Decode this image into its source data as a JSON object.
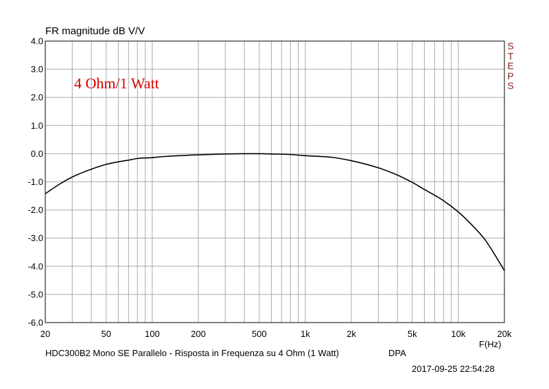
{
  "colors": {
    "grid": "#a9a9a9",
    "curve": "#000000",
    "annotation": "#d40000",
    "steps": "#8b2020"
  },
  "texts": {
    "y_label": "FR magnitude dB V/V",
    "annotation": "4 Ohm/1 Watt",
    "caption": "HDC300B2 Mono SE Parallelo - Risposta in Frequenza su 4 Ohm (1 Watt)",
    "vendor": "DPA",
    "timestamp": "2017-09-25 22:54:28",
    "x_unit": "F(Hz)",
    "steps": "STEPS"
  },
  "chart_data": {
    "type": "line",
    "title": "",
    "xlabel": "F(Hz)",
    "ylabel": "FR magnitude dB V/V",
    "xscale": "log",
    "xlim": [
      20,
      20000
    ],
    "ylim": [
      -6,
      4
    ],
    "grid": true,
    "x_ticks": [
      {
        "v": 20,
        "label": "20"
      },
      {
        "v": 50,
        "label": "50"
      },
      {
        "v": 100,
        "label": "100"
      },
      {
        "v": 200,
        "label": "200"
      },
      {
        "v": 500,
        "label": "500"
      },
      {
        "v": 1000,
        "label": "1k"
      },
      {
        "v": 2000,
        "label": "2k"
      },
      {
        "v": 5000,
        "label": "5k"
      },
      {
        "v": 10000,
        "label": "10k"
      },
      {
        "v": 20000,
        "label": "20k"
      }
    ],
    "y_ticks": [
      {
        "v": 4,
        "label": "4.0"
      },
      {
        "v": 3,
        "label": "3.0"
      },
      {
        "v": 2,
        "label": "2.0"
      },
      {
        "v": 1,
        "label": "1.0"
      },
      {
        "v": 0,
        "label": "0.0"
      },
      {
        "v": -1,
        "label": "-1.0"
      },
      {
        "v": -2,
        "label": "-2.0"
      },
      {
        "v": -3,
        "label": "-3.0"
      },
      {
        "v": -4,
        "label": "-4.0"
      },
      {
        "v": -5,
        "label": "-5.0"
      },
      {
        "v": -6,
        "label": "-6.0"
      }
    ],
    "series": [
      {
        "x": [
          20,
          25,
          30,
          35,
          40,
          50,
          60,
          70,
          80,
          100,
          120,
          150,
          200,
          300,
          400,
          500,
          600,
          800,
          1000,
          1500,
          2000,
          3000,
          4000,
          5000,
          6000,
          8000,
          10000,
          12000,
          15000,
          20000
        ],
        "y": [
          -1.42,
          -1.07,
          -0.83,
          -0.67,
          -0.55,
          -0.38,
          -0.29,
          -0.23,
          -0.17,
          -0.14,
          -0.1,
          -0.07,
          -0.04,
          -0.01,
          0,
          0,
          -0.01,
          -0.03,
          -0.07,
          -0.13,
          -0.25,
          -0.5,
          -0.76,
          -1.02,
          -1.27,
          -1.67,
          -2.07,
          -2.48,
          -3.07,
          -4.15
        ]
      }
    ]
  }
}
